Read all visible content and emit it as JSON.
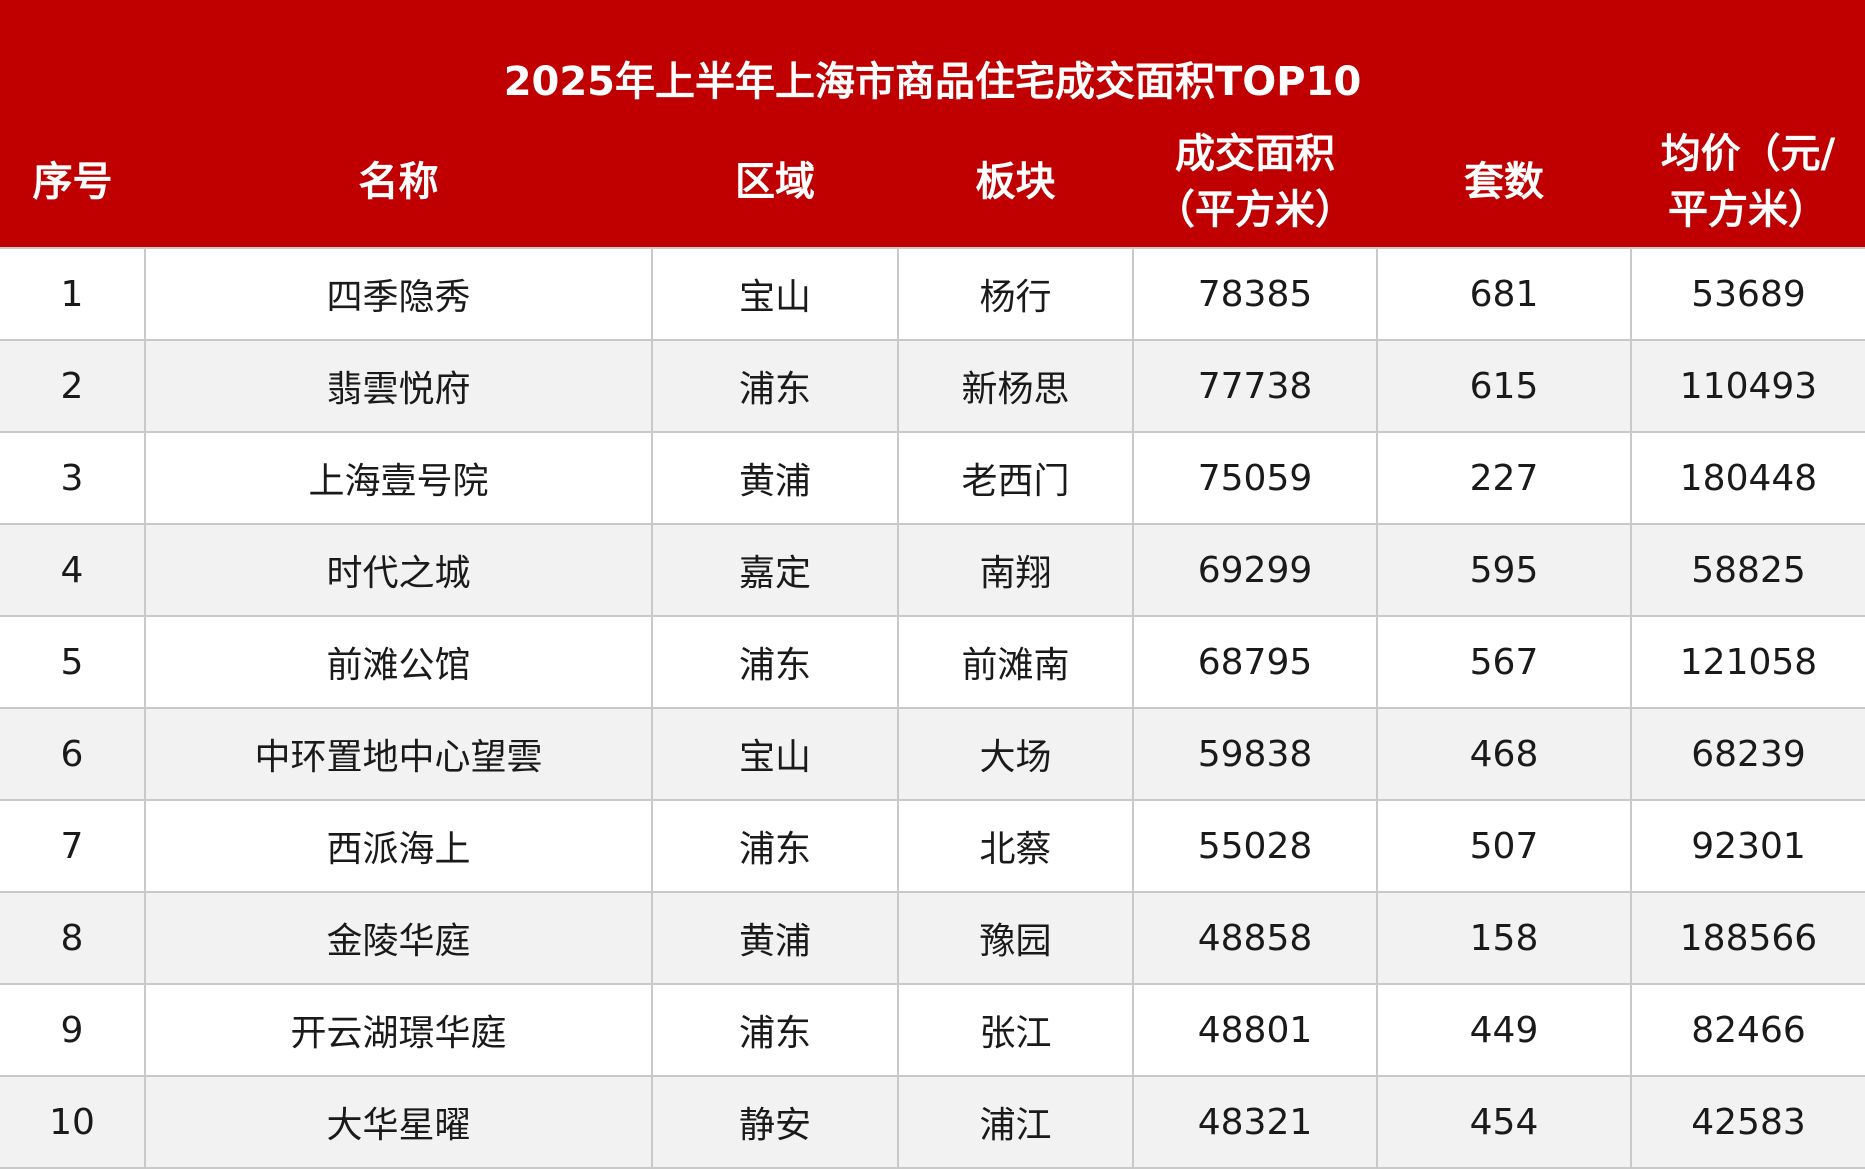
{
  "chart_data": {
    "type": "table",
    "title": "2025年上半年上海市商品住宅成交面积TOP10",
    "columns": [
      {
        "lines": [
          "序号"
        ]
      },
      {
        "lines": [
          "名称"
        ]
      },
      {
        "lines": [
          "区域"
        ]
      },
      {
        "lines": [
          "板块"
        ]
      },
      {
        "lines": [
          "成交面积",
          "（平方米）"
        ]
      },
      {
        "lines": [
          "套数"
        ]
      },
      {
        "lines": [
          "均价（元/",
          "平方米）"
        ]
      }
    ],
    "rows": [
      [
        "1",
        "四季隐秀",
        "宝山",
        "杨行",
        "78385",
        "681",
        "53689"
      ],
      [
        "2",
        "翡雲悦府",
        "浦东",
        "新杨思",
        "77738",
        "615",
        "110493"
      ],
      [
        "3",
        "上海壹号院",
        "黄浦",
        "老西门",
        "75059",
        "227",
        "180448"
      ],
      [
        "4",
        "时代之城",
        "嘉定",
        "南翔",
        "69299",
        "595",
        "58825"
      ],
      [
        "5",
        "前滩公馆",
        "浦东",
        "前滩南",
        "68795",
        "567",
        "121058"
      ],
      [
        "6",
        "中环置地中心望雲",
        "宝山",
        "大场",
        "59838",
        "468",
        "68239"
      ],
      [
        "7",
        "西派海上",
        "浦东",
        "北蔡",
        "55028",
        "507",
        "92301"
      ],
      [
        "8",
        "金陵华庭",
        "黄浦",
        "豫园",
        "48858",
        "158",
        "188566"
      ],
      [
        "9",
        "开云湖璟华庭",
        "浦东",
        "张江",
        "48801",
        "449",
        "82466"
      ],
      [
        "10",
        "大华星曜",
        "静安",
        "浦江",
        "48321",
        "454",
        "42583"
      ]
    ],
    "colors": {
      "header_bg": "#c00000",
      "header_text": "#ffffff",
      "row_alt_bg": "#f2f2f2",
      "grid": "#c9c9c9"
    }
  }
}
